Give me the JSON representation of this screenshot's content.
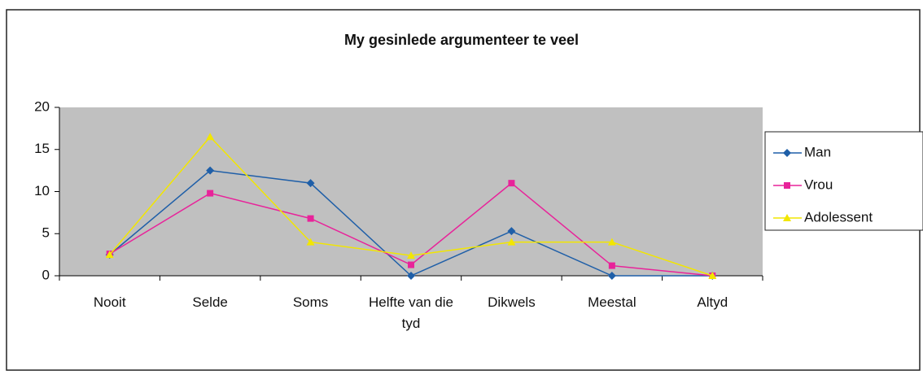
{
  "chart_data": {
    "type": "line",
    "title": "My gesinlede argumenteer te veel",
    "categories": [
      "Nooit",
      "Selde",
      "Soms",
      "Helfte van die tyd",
      "Dikwels",
      "Meestal",
      "Altyd"
    ],
    "series": [
      {
        "name": "Man",
        "color": "#1f5fa8",
        "values": [
          2.5,
          12.5,
          11,
          0,
          5.3,
          0,
          0
        ]
      },
      {
        "name": "Vrou",
        "color": "#e8239a",
        "values": [
          2.6,
          9.8,
          6.8,
          1.3,
          11,
          1.2,
          0
        ]
      },
      {
        "name": "Adolessent",
        "color": "#f2e600",
        "values": [
          2.5,
          16.5,
          4,
          2.4,
          4,
          4,
          0
        ]
      }
    ],
    "ylim": [
      0,
      20
    ],
    "yticks": [
      0,
      5,
      10,
      15,
      20
    ],
    "legend": "right"
  }
}
